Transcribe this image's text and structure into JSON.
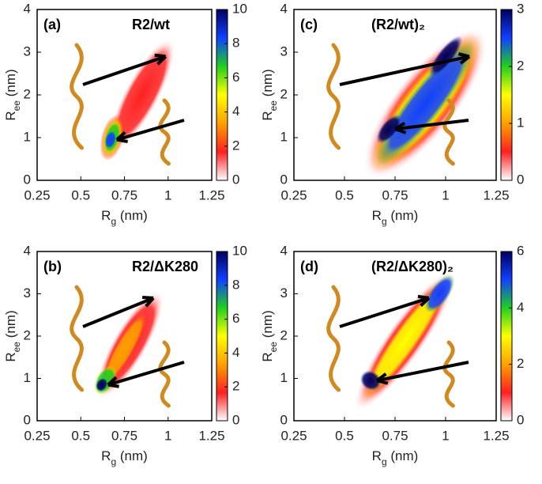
{
  "chart_data": [
    {
      "type": "heatmap",
      "label": "(a)",
      "title": "R2/wt",
      "xlabel": {
        "main": "R",
        "sub": "g",
        "unit": " (nm)"
      },
      "ylabel": {
        "main": "R",
        "sub": "ee",
        "unit": " (nm)"
      },
      "xlim": [
        0.25,
        1.25
      ],
      "xticks": [
        0.25,
        0.5,
        0.75,
        1,
        1.25
      ],
      "ylim": [
        0,
        4
      ],
      "yticks": [
        0,
        1,
        2,
        3,
        4
      ],
      "clim": [
        0,
        10
      ],
      "cticks": [
        0,
        2,
        4,
        6,
        8,
        10
      ],
      "colormap": [
        "#ffffff",
        "#ff2020",
        "#ffa000",
        "#ffff00",
        "#20d020",
        "#1040ff",
        "#000060"
      ]
    },
    {
      "type": "heatmap",
      "label": "(b)",
      "title": "R2/ΔK280",
      "xlabel": {
        "main": "R",
        "sub": "g",
        "unit": " (nm)"
      },
      "ylabel": {
        "main": "R",
        "sub": "ee",
        "unit": " (nm)"
      },
      "xlim": [
        0.25,
        1.25
      ],
      "xticks": [
        0.25,
        0.5,
        0.75,
        1,
        1.25
      ],
      "ylim": [
        0,
        4
      ],
      "yticks": [
        0,
        1,
        2,
        3,
        4
      ],
      "clim": [
        0,
        10
      ],
      "cticks": [
        0,
        2,
        4,
        6,
        8,
        10
      ],
      "colormap": [
        "#ffffff",
        "#ff2020",
        "#ffa000",
        "#ffff00",
        "#20d020",
        "#1040ff",
        "#000060"
      ]
    },
    {
      "type": "heatmap",
      "label": "(c)",
      "title": "(R2/wt)₂",
      "xlabel": {
        "main": "R",
        "sub": "g",
        "unit": " (nm)"
      },
      "ylabel": {
        "main": "R",
        "sub": "ee",
        "unit": " (nm)"
      },
      "xlim": [
        0.25,
        1.25
      ],
      "xticks": [
        0.25,
        0.5,
        0.75,
        1,
        1.25
      ],
      "ylim": [
        0,
        4
      ],
      "yticks": [
        0,
        1,
        2,
        3,
        4
      ],
      "clim": [
        0,
        3
      ],
      "cticks": [
        0,
        1,
        2,
        3
      ],
      "colormap": [
        "#ffffff",
        "#ff2020",
        "#ffa000",
        "#ffff00",
        "#20d020",
        "#1040ff",
        "#000060"
      ]
    },
    {
      "type": "heatmap",
      "label": "(d)",
      "title": "(R2/ΔK280)₂",
      "xlabel": {
        "main": "R",
        "sub": "g",
        "unit": " (nm)"
      },
      "ylabel": {
        "main": "R",
        "sub": "ee",
        "unit": " (nm)"
      },
      "xlim": [
        0.25,
        1.25
      ],
      "xticks": [
        0.25,
        0.5,
        0.75,
        1,
        1.25
      ],
      "ylim": [
        0,
        4
      ],
      "yticks": [
        0,
        1,
        2,
        3,
        4
      ],
      "clim": [
        0,
        6
      ],
      "cticks": [
        0,
        2,
        4,
        6
      ],
      "colormap": [
        "#ffffff",
        "#ff2020",
        "#ffa000",
        "#ffff00",
        "#20d020",
        "#1040ff",
        "#000060"
      ]
    }
  ]
}
